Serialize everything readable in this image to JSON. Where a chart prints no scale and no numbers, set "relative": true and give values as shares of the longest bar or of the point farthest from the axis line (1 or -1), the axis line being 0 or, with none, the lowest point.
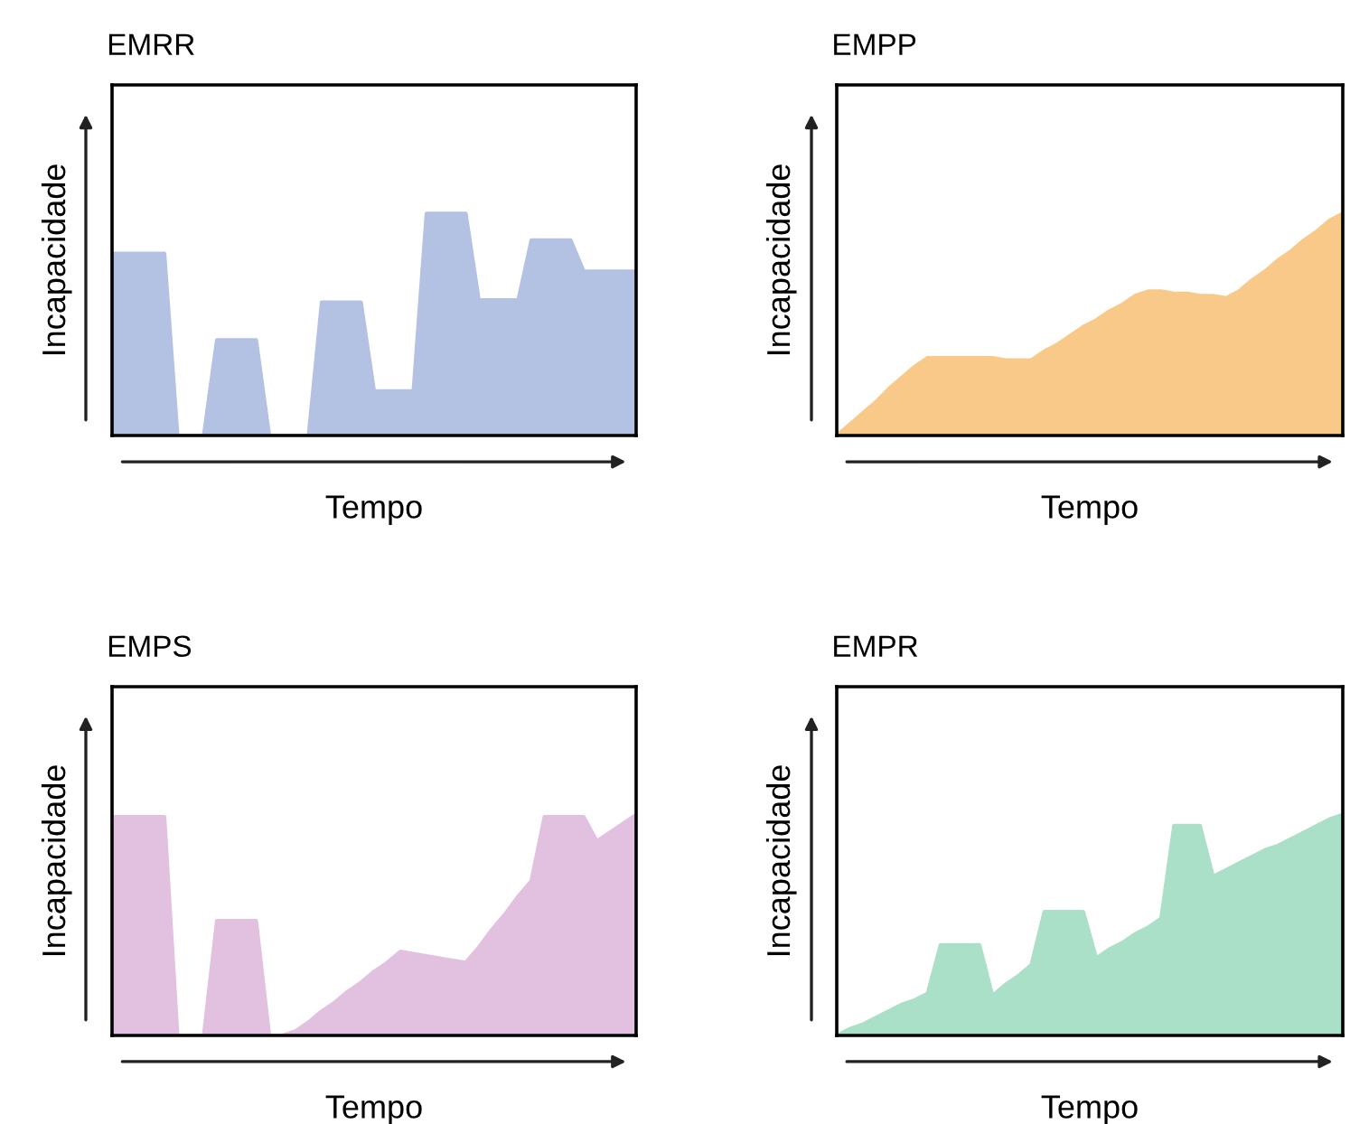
{
  "chart_data": [
    {
      "type": "area",
      "title": "EMRR",
      "xlabel": "Tempo",
      "ylabel": "Incapacidade",
      "relative": true,
      "categories": [
        null,
        null,
        null,
        null,
        null,
        null,
        null,
        null,
        null,
        null,
        null,
        null,
        null,
        null,
        null,
        null,
        null,
        null,
        null,
        null,
        null,
        null,
        null,
        null,
        null,
        null,
        null,
        null,
        null,
        null,
        null,
        null,
        null,
        null,
        null,
        null,
        null,
        null,
        null,
        null,
        null
      ],
      "series": [
        {
          "color": "#b3c1e3",
          "values": [
            0.82,
            0.82,
            0.82,
            0.82,
            0.82,
            0,
            0,
            0,
            0.43,
            0.43,
            0.43,
            0.43,
            0,
            0,
            0,
            0,
            0.6,
            0.6,
            0.6,
            0.6,
            0.2,
            0.2,
            0.2,
            0.2,
            1,
            1,
            1,
            1,
            0.61,
            0.61,
            0.61,
            0.61,
            0.88,
            0.88,
            0.88,
            0.88,
            0.74,
            0.74,
            0.74,
            0.74,
            0.74
          ]
        }
      ]
    },
    {
      "type": "area",
      "title": "EMPP",
      "xlabel": "Tempo",
      "ylabel": "Incapacidade",
      "relative": true,
      "categories": [
        null,
        null,
        null,
        null,
        null,
        null,
        null,
        null,
        null,
        null,
        null,
        null,
        null,
        null,
        null,
        null,
        null,
        null,
        null,
        null,
        null,
        null,
        null,
        null,
        null,
        null,
        null,
        null,
        null,
        null,
        null,
        null,
        null,
        null,
        null,
        null,
        null,
        null,
        null,
        null
      ],
      "series": [
        {
          "color": "#f9c98a",
          "values": [
            0,
            0.05,
            0.1,
            0.15,
            0.21,
            0.26,
            0.31,
            0.35,
            0.35,
            0.35,
            0.35,
            0.35,
            0.35,
            0.34,
            0.34,
            0.34,
            0.38,
            0.41,
            0.45,
            0.49,
            0.52,
            0.56,
            0.59,
            0.63,
            0.65,
            0.65,
            0.64,
            0.64,
            0.63,
            0.63,
            0.62,
            0.65,
            0.7,
            0.74,
            0.79,
            0.83,
            0.88,
            0.92,
            0.97,
            1
          ]
        }
      ]
    },
    {
      "type": "area",
      "title": "EMPS",
      "xlabel": "Tempo",
      "ylabel": "Incapacidade",
      "relative": true,
      "categories": [
        null,
        null,
        null,
        null,
        null,
        null,
        null,
        null,
        null,
        null,
        null,
        null,
        null,
        null,
        null,
        null,
        null,
        null,
        null,
        null,
        null,
        null,
        null,
        null,
        null,
        null,
        null,
        null,
        null,
        null,
        null,
        null,
        null,
        null,
        null,
        null,
        null,
        null,
        null,
        null,
        null
      ],
      "series": [
        {
          "color": "#e2c0e0",
          "values": [
            0.99,
            0.99,
            0.99,
            0.99,
            0.99,
            0,
            0,
            0,
            0.52,
            0.52,
            0.52,
            0.52,
            0,
            0,
            0.02,
            0.06,
            0.11,
            0.15,
            0.2,
            0.24,
            0.29,
            0.33,
            0.38,
            0.37,
            0.36,
            0.35,
            0.34,
            0.33,
            0.4,
            0.48,
            0.55,
            0.63,
            0.7,
            0.99,
            0.99,
            0.99,
            0.99,
            0.88,
            0.92,
            0.96,
            1
          ]
        }
      ]
    },
    {
      "type": "area",
      "title": "EMPR",
      "xlabel": "Tempo",
      "ylabel": "Incapacidade",
      "relative": true,
      "categories": [
        null,
        null,
        null,
        null,
        null,
        null,
        null,
        null,
        null,
        null,
        null,
        null,
        null,
        null,
        null,
        null,
        null,
        null,
        null,
        null,
        null,
        null,
        null,
        null,
        null,
        null,
        null,
        null,
        null,
        null,
        null,
        null,
        null,
        null,
        null,
        null,
        null,
        null,
        null,
        null
      ],
      "series": [
        {
          "color": "#abe0c8",
          "values": [
            0,
            0.03,
            0.05,
            0.08,
            0.11,
            0.14,
            0.16,
            0.19,
            0.41,
            0.41,
            0.41,
            0.41,
            0.18,
            0.23,
            0.27,
            0.32,
            0.56,
            0.56,
            0.56,
            0.56,
            0.35,
            0.39,
            0.42,
            0.46,
            0.49,
            0.53,
            0.95,
            0.95,
            0.95,
            0.72,
            0.75,
            0.78,
            0.81,
            0.84,
            0.86,
            0.89,
            0.92,
            0.95,
            0.98,
            1
          ]
        }
      ]
    }
  ]
}
